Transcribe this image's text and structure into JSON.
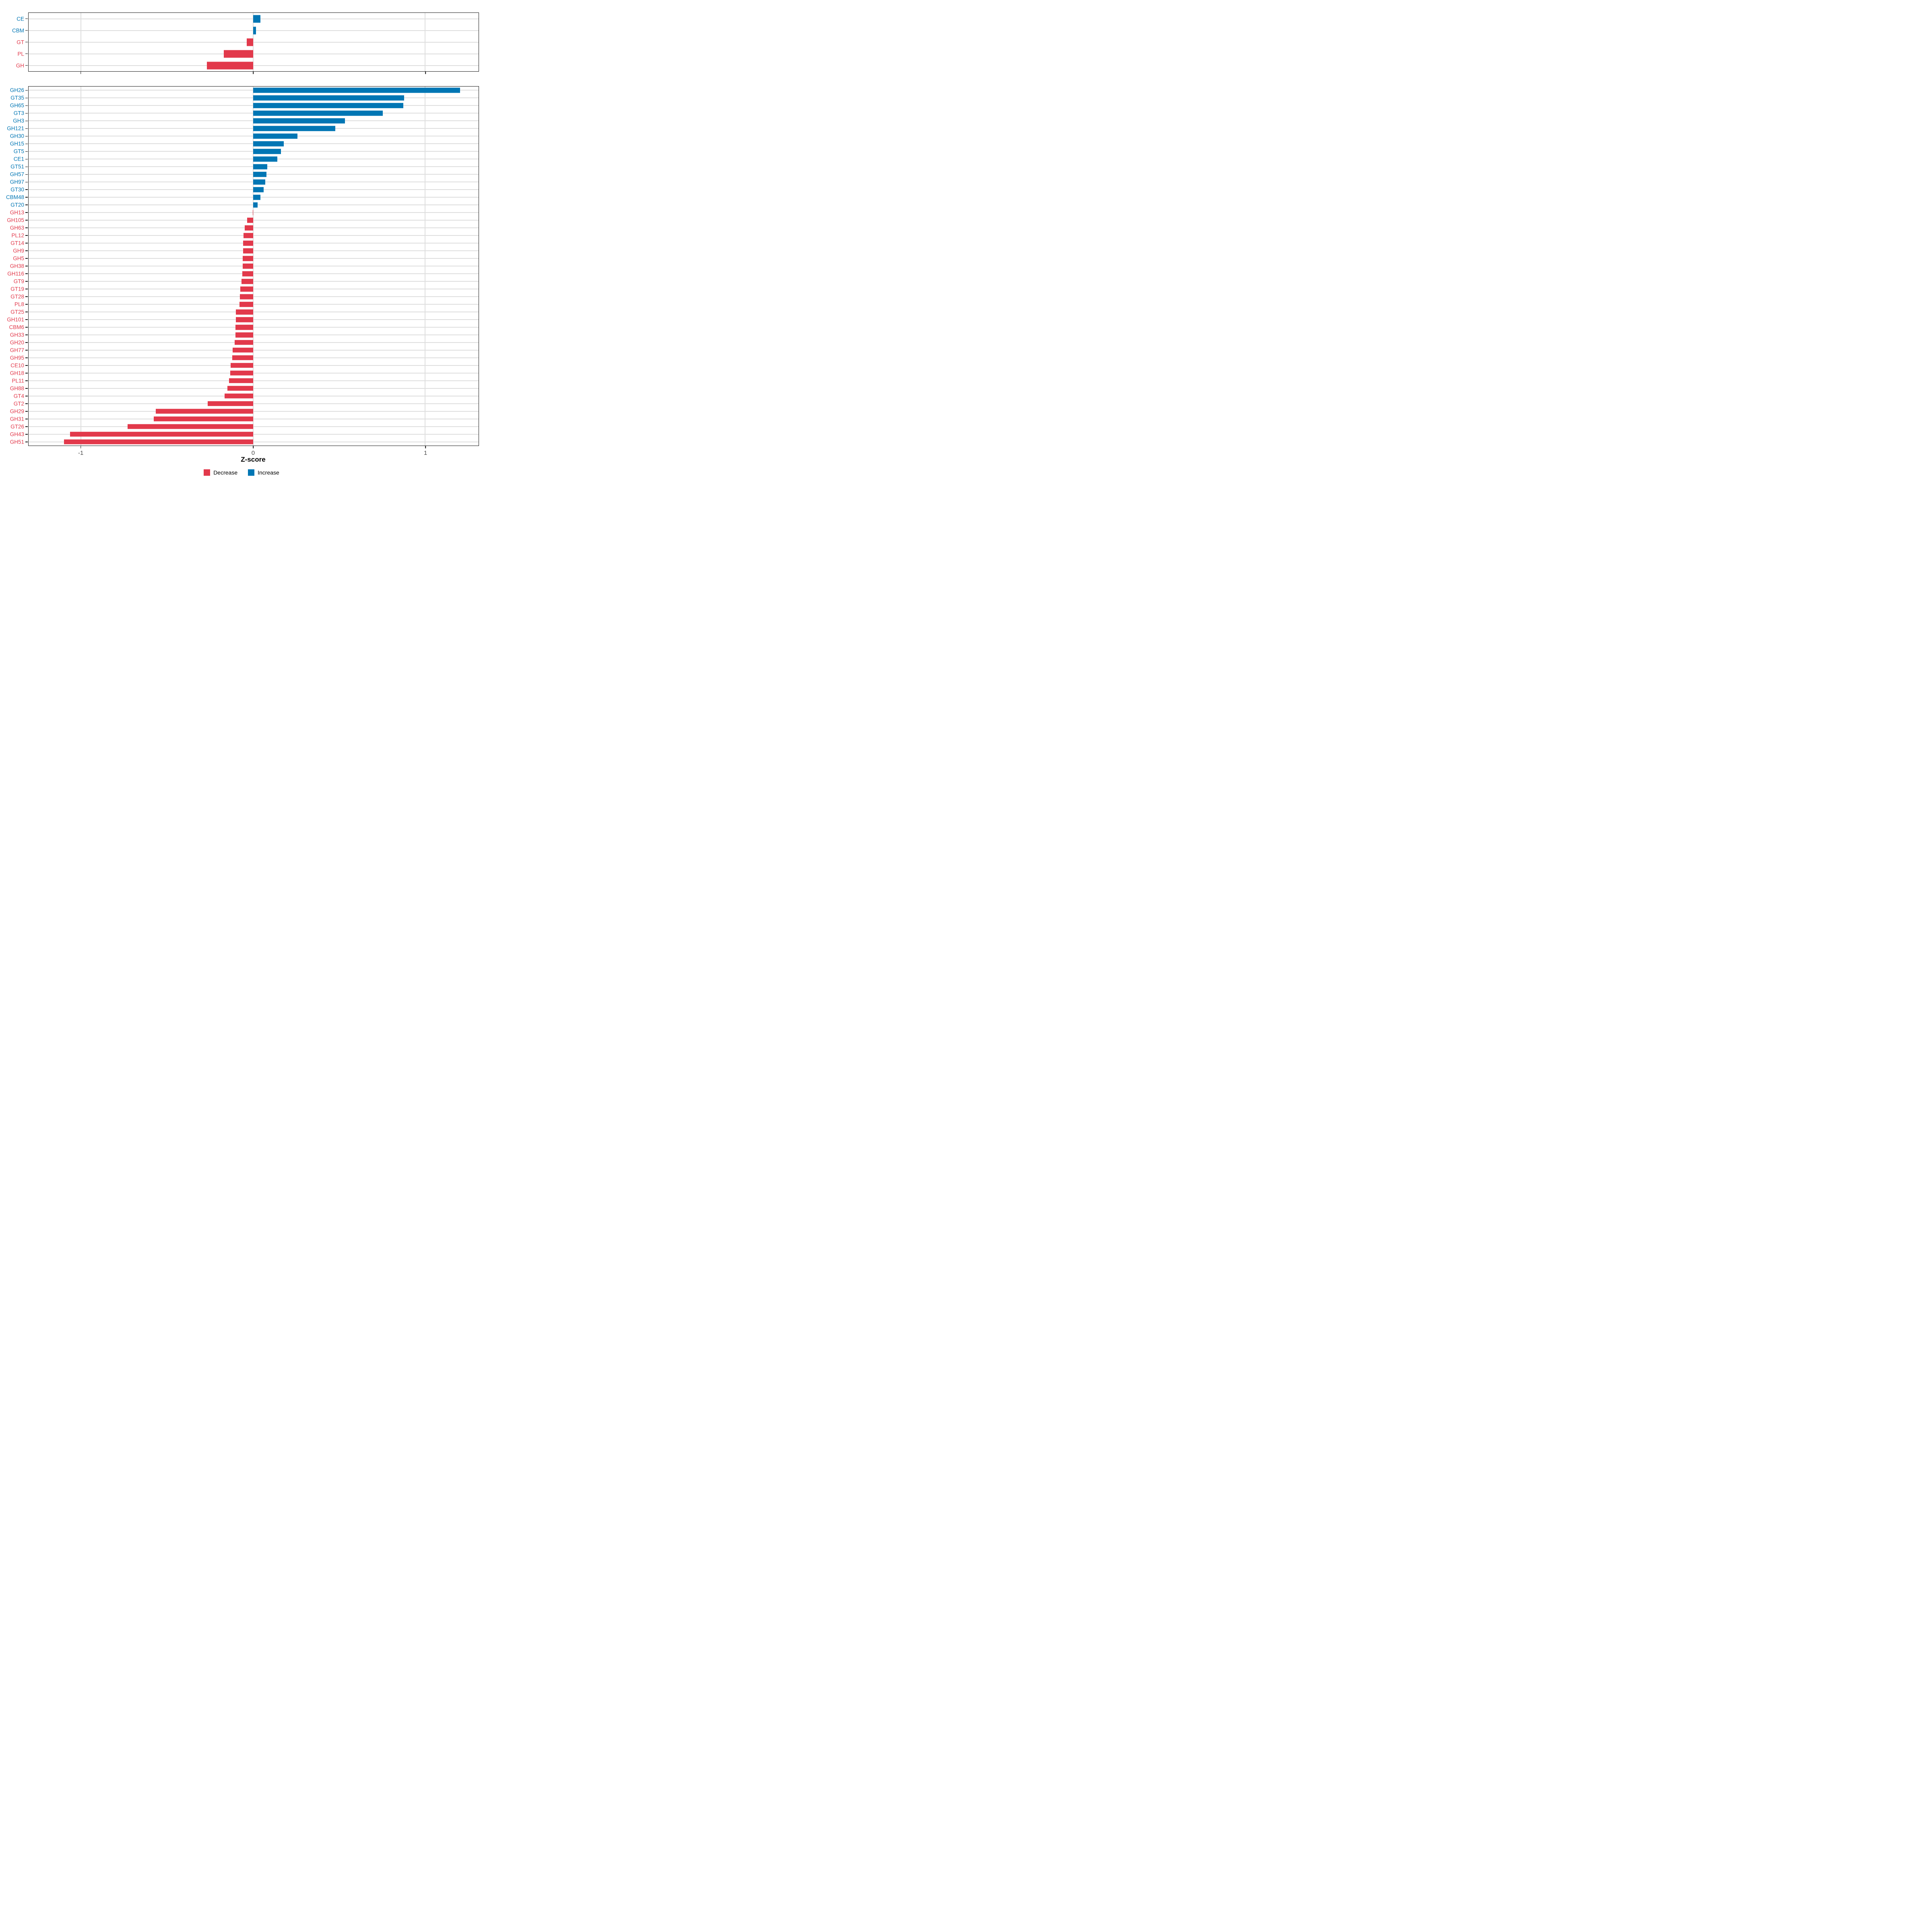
{
  "chart_data": {
    "type": "bar",
    "orientation": "horizontal",
    "title": "",
    "xlabel": "Z-score",
    "x_domain": [
      -1.305,
      1.31
    ],
    "x_ticks": [
      -1,
      0,
      1
    ],
    "x_tick_labels": [
      "-1",
      "0",
      "1"
    ],
    "grid": "on",
    "legend_position": "bottom",
    "legend": [
      {
        "label": "Decrease",
        "color": "#E2394B"
      },
      {
        "label": "Increase",
        "color": "#0076B4"
      }
    ],
    "panels": [
      {
        "name": "family-summary",
        "categories": [
          "CE",
          "CBM",
          "GT",
          "PL",
          "GH"
        ],
        "values": [
          0.043,
          0.016,
          -0.037,
          -0.171,
          -0.269
        ]
      },
      {
        "name": "subfamily-detail",
        "categories": [
          "GH26",
          "GT35",
          "GH65",
          "GT3",
          "GH3",
          "GH121",
          "GH30",
          "GH15",
          "GT5",
          "CE1",
          "GT51",
          "GH57",
          "GH97",
          "GT30",
          "CBM48",
          "GT20",
          "GH13",
          "GH105",
          "GH63",
          "PL12",
          "GT14",
          "GH9",
          "GH5",
          "GH38",
          "GH116",
          "GT9",
          "GT19",
          "GT28",
          "PL8",
          "GT25",
          "GH101",
          "CBM6",
          "GH33",
          "GH20",
          "GH77",
          "GH95",
          "CE10",
          "GH18",
          "PL11",
          "GH88",
          "GT4",
          "GT2",
          "GH29",
          "GH31",
          "GT26",
          "GH43",
          "GH51"
        ],
        "values": [
          1.203,
          0.877,
          0.873,
          0.754,
          0.534,
          0.478,
          0.257,
          0.177,
          0.162,
          0.141,
          0.082,
          0.077,
          0.071,
          0.061,
          0.043,
          0.025,
          -0.002,
          -0.036,
          -0.048,
          -0.057,
          -0.058,
          -0.059,
          -0.06,
          -0.061,
          -0.063,
          -0.067,
          -0.074,
          -0.076,
          -0.08,
          -0.1,
          -0.101,
          -0.102,
          -0.103,
          -0.107,
          -0.119,
          -0.121,
          -0.132,
          -0.133,
          -0.141,
          -0.15,
          -0.166,
          -0.263,
          -0.566,
          -0.578,
          -0.73,
          -1.065,
          -1.1
        ]
      }
    ]
  },
  "colors": {
    "increase": "#0076B4",
    "decrease": "#E2394B",
    "gridline": "#dedede",
    "axis": "#1a1a1a",
    "tick_text": "#4d4d4d",
    "background": "#ffffff"
  },
  "layout_text": {
    "legend_decrease": "Decrease",
    "legend_increase": "Increase",
    "xlabel": "Z-score"
  }
}
